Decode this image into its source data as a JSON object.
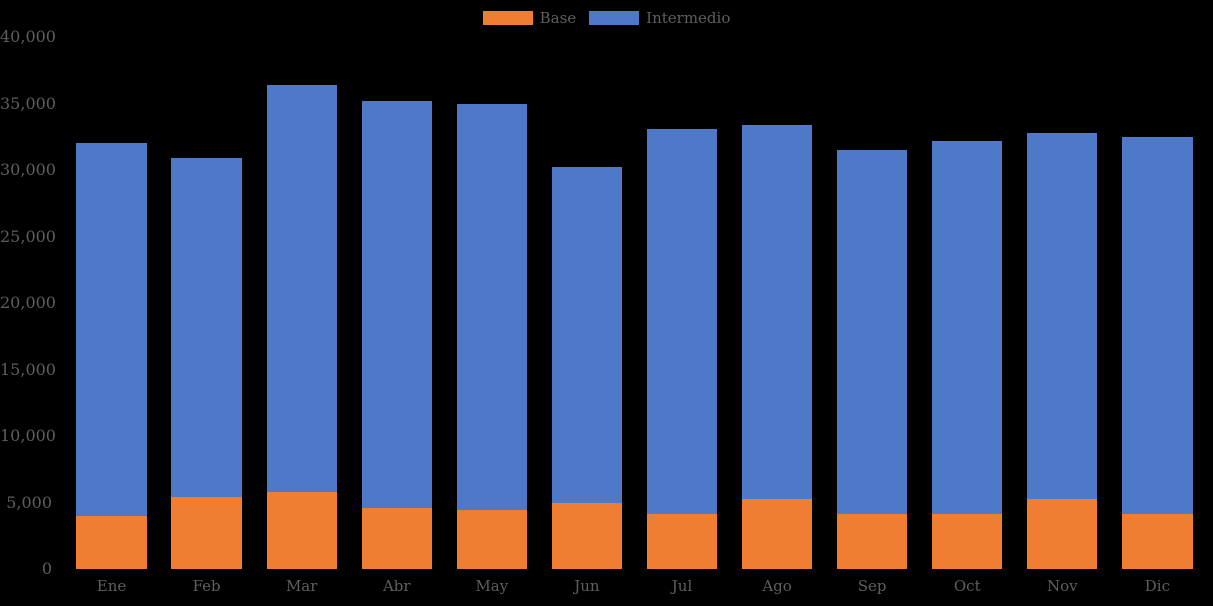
{
  "colors": {
    "background": "#000000",
    "base_series": "#EF7E33",
    "intermedio_series": "#4D79C8",
    "axis_text": "#5e5e5e"
  },
  "legend": {
    "items": [
      {
        "label": "Base",
        "color": "#EF7E33"
      },
      {
        "label": "Intermedio",
        "color": "#4D79C8"
      }
    ]
  },
  "chart_data": {
    "type": "bar",
    "stacked": true,
    "title": "",
    "xlabel": "",
    "ylabel": "",
    "categories": [
      "Ene",
      "Feb",
      "Mar",
      "Abr",
      "May",
      "Jun",
      "Jul",
      "Ago",
      "Sep",
      "Oct",
      "Nov",
      "Dic"
    ],
    "series": [
      {
        "name": "Base",
        "color": "#EF7E33",
        "values": [
          4000,
          5400,
          5800,
          4600,
          4400,
          5000,
          4100,
          5300,
          4100,
          4100,
          5300,
          4100
        ]
      },
      {
        "name": "Intermedio",
        "color": "#4D79C8",
        "values": [
          28000,
          25500,
          30600,
          30600,
          30600,
          25200,
          29000,
          28100,
          27400,
          28100,
          27500,
          28400
        ]
      }
    ],
    "totals": [
      32000,
      30900,
      36400,
      35200,
      35000,
      30200,
      33100,
      33400,
      31500,
      32200,
      32800,
      32500
    ],
    "ylim": [
      0,
      40000
    ],
    "yticks": [
      {
        "value": 0,
        "label": "0"
      },
      {
        "value": 5000,
        "label": "5,000"
      },
      {
        "value": 10000,
        "label": "10,000"
      },
      {
        "value": 15000,
        "label": "15,000"
      },
      {
        "value": 20000,
        "label": "20,000"
      },
      {
        "value": 25000,
        "label": "25,000"
      },
      {
        "value": 30000,
        "label": "30,000"
      },
      {
        "value": 35000,
        "label": "35,000"
      },
      {
        "value": 40000,
        "label": "40,000"
      }
    ],
    "grid": false,
    "legend_position": "top-center"
  }
}
